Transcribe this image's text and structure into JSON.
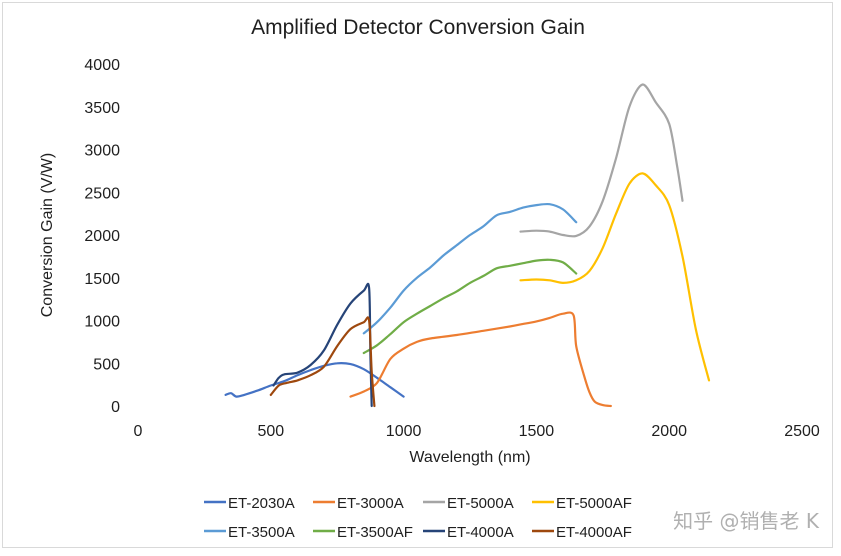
{
  "chart_data": {
    "type": "line",
    "title": "Amplified Detector Conversion Gain",
    "xlabel": "Wavelength (nm)",
    "ylabel": "Conversion Gain (V/W)",
    "xlim": [
      0,
      2500
    ],
    "ylim": [
      0,
      4000
    ],
    "xticks": [
      0,
      500,
      1000,
      1500,
      2000,
      2500
    ],
    "yticks": [
      0,
      500,
      1000,
      1500,
      2000,
      2500,
      3000,
      3500,
      4000
    ],
    "grid": false,
    "legend_position": "bottom",
    "series": [
      {
        "name": "ET-2030A",
        "color": "#4472C4",
        "x": [
          330,
          350,
          370,
          400,
          450,
          500,
          550,
          600,
          650,
          700,
          750,
          800,
          850,
          900,
          950,
          1000
        ],
        "y": [
          130,
          150,
          110,
          130,
          180,
          240,
          290,
          360,
          420,
          470,
          500,
          490,
          430,
          330,
          220,
          110
        ]
      },
      {
        "name": "ET-3000A",
        "color": "#ED7D31",
        "x": [
          800,
          850,
          900,
          950,
          1000,
          1050,
          1100,
          1200,
          1300,
          1400,
          1450,
          1500,
          1550,
          1600,
          1640,
          1650,
          1680,
          1700,
          1720,
          1750,
          1780
        ],
        "y": [
          110,
          170,
          270,
          550,
          670,
          750,
          790,
          830,
          880,
          930,
          960,
          990,
          1030,
          1080,
          1060,
          700,
          350,
          160,
          50,
          10,
          0
        ]
      },
      {
        "name": "ET-5000A",
        "color": "#A5A5A5",
        "x": [
          1440,
          1500,
          1550,
          1600,
          1650,
          1700,
          1750,
          1800,
          1850,
          1900,
          1950,
          2000,
          2030,
          2050
        ],
        "y": [
          2040,
          2050,
          2040,
          2000,
          1990,
          2100,
          2400,
          2900,
          3500,
          3760,
          3550,
          3300,
          2800,
          2400
        ]
      },
      {
        "name": "ET-5000AF",
        "color": "#FFC000",
        "x": [
          1440,
          1500,
          1550,
          1600,
          1650,
          1700,
          1750,
          1800,
          1850,
          1900,
          1950,
          2000,
          2050,
          2100,
          2150
        ],
        "y": [
          1470,
          1480,
          1470,
          1440,
          1470,
          1580,
          1850,
          2250,
          2600,
          2720,
          2580,
          2350,
          1750,
          900,
          300
        ]
      },
      {
        "name": "ET-3500A",
        "color": "#5B9BD5",
        "x": [
          850,
          900,
          950,
          1000,
          1050,
          1100,
          1150,
          1200,
          1250,
          1300,
          1350,
          1400,
          1450,
          1500,
          1550,
          1600,
          1650
        ],
        "y": [
          850,
          980,
          1150,
          1350,
          1500,
          1620,
          1760,
          1880,
          2000,
          2100,
          2230,
          2270,
          2320,
          2350,
          2360,
          2300,
          2150
        ]
      },
      {
        "name": "ET-3500AF",
        "color": "#70AD47",
        "x": [
          850,
          900,
          950,
          1000,
          1050,
          1100,
          1150,
          1200,
          1250,
          1300,
          1350,
          1400,
          1450,
          1500,
          1550,
          1600,
          1650
        ],
        "y": [
          620,
          710,
          840,
          980,
          1080,
          1170,
          1260,
          1340,
          1440,
          1520,
          1610,
          1640,
          1670,
          1700,
          1710,
          1680,
          1550
        ]
      },
      {
        "name": "ET-4000A",
        "color": "#264478",
        "x": [
          510,
          530,
          550,
          600,
          650,
          700,
          750,
          800,
          850,
          870,
          875,
          880
        ],
        "y": [
          240,
          330,
          370,
          390,
          480,
          650,
          950,
          1200,
          1350,
          1380,
          600,
          0
        ]
      },
      {
        "name": "ET-4000AF",
        "color": "#9E480E",
        "x": [
          500,
          530,
          560,
          600,
          650,
          700,
          750,
          800,
          850,
          870,
          880,
          890
        ],
        "y": [
          130,
          240,
          270,
          300,
          360,
          460,
          700,
          900,
          980,
          1000,
          400,
          0
        ]
      }
    ]
  },
  "watermark": "知乎 @销售老 K"
}
